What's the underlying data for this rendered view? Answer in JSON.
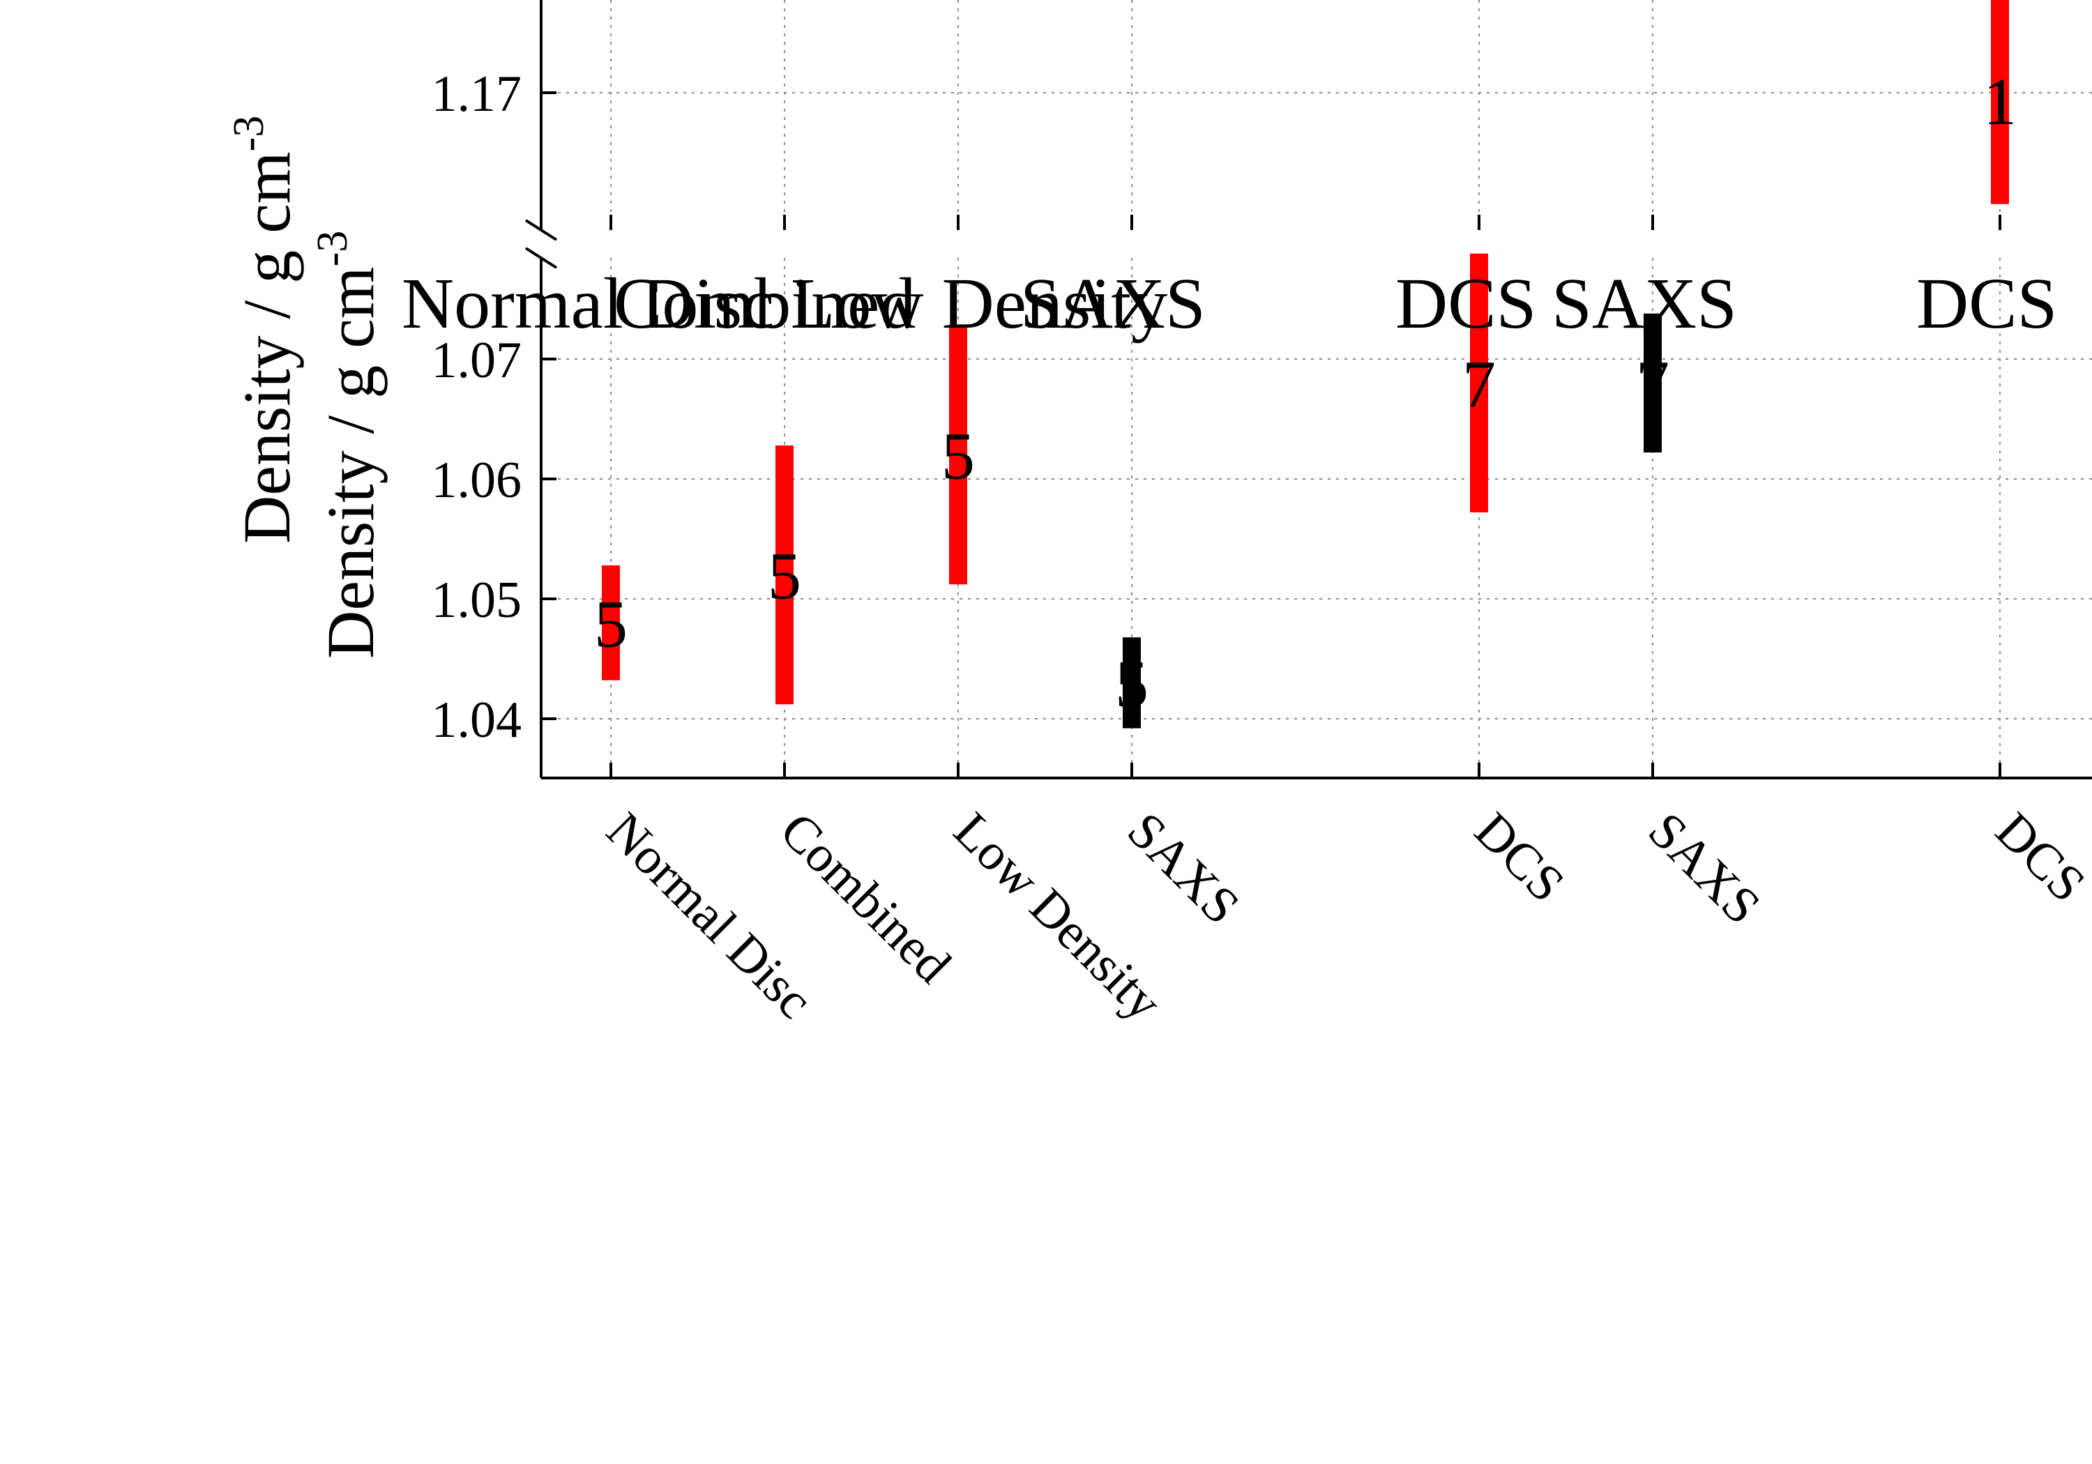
{
  "chart_data": {
    "type": "scatter",
    "ylabel_lower": "Density / g cm-3",
    "ylabel_upper": "Density / g cm-3",
    "ylabel_parts": {
      "main": "Density / g cm",
      "sup": "-3"
    },
    "lower_axis": {
      "ylim": [
        1.035,
        1.0785
      ],
      "ticks": [
        "1.04",
        "1.05",
        "1.06",
        "1.07"
      ]
    },
    "upper_axis": {
      "ylim": [
        1.161,
        1.178
      ],
      "ticks": [
        "1.17"
      ]
    },
    "axis_break": true,
    "grid": true,
    "categories": [
      "Normal Disc",
      "Combined",
      "Low Density",
      "SAXS",
      "DCS",
      "SAXS",
      "DCS"
    ],
    "x_positions": [
      1,
      2,
      3,
      4,
      6,
      7,
      9
    ],
    "top_labels": [
      "Normal Disc",
      "Combined",
      "Low Density",
      "SAXS",
      "DCS",
      "SAXS",
      "DCS"
    ],
    "series": [
      {
        "color": "#ff0000",
        "points": [
          {
            "x": 1,
            "low": 1.0435,
            "high": 1.0525,
            "label": "5"
          },
          {
            "x": 2,
            "low": 1.0415,
            "high": 1.0625,
            "label": "5"
          },
          {
            "x": 3,
            "low": 1.0515,
            "high": 1.0725,
            "label": "5"
          },
          {
            "x": 6,
            "low": 1.0575,
            "high": 1.0785,
            "label": "7"
          },
          {
            "x": 9,
            "low": 1.161,
            "high": 1.178,
            "label": "1"
          }
        ]
      },
      {
        "color": "#000000",
        "points": [
          {
            "x": 4,
            "low": 1.0395,
            "high": 1.0465,
            "label": "5"
          },
          {
            "x": 7,
            "low": 1.0625,
            "high": 1.0735,
            "label": "7"
          }
        ]
      }
    ]
  }
}
